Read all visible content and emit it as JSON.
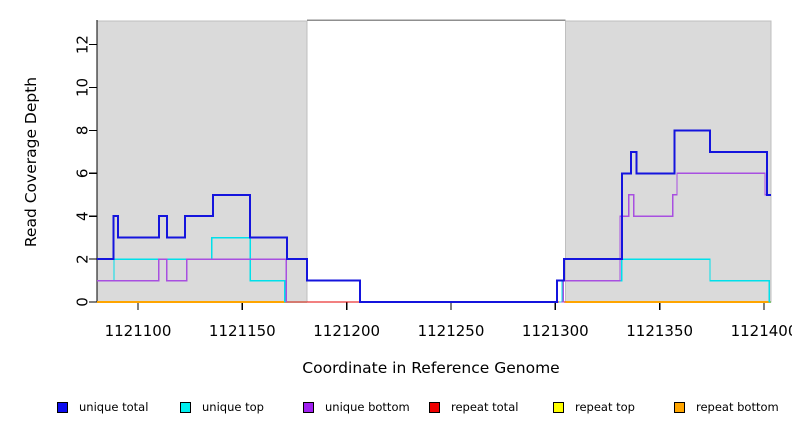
{
  "chart_data": {
    "type": "line",
    "step": true,
    "title": "",
    "axes": {
      "x": {
        "label": "Coordinate in Reference Genome",
        "tick_values": [
          1121100,
          1121150,
          1121200,
          1121250,
          1121300,
          1121350,
          1121400
        ],
        "tick_labels": [
          "1121100",
          "1121150",
          "1121200",
          "1121250",
          "1121300",
          "1121350",
          "1121400"
        ],
        "min": 1121080.4,
        "max": 1121403.3
      },
      "y": {
        "label": "Read Coverage Depth",
        "tick_values": [
          0,
          2,
          4,
          6,
          8,
          10,
          12
        ],
        "tick_labels": [
          "0",
          "2",
          "4",
          "6",
          "8",
          "10",
          "12"
        ],
        "min": 0,
        "max": 13.1
      }
    },
    "shaded_regions": [
      {
        "from": 1121080.4,
        "to": 1121181,
        "fill": "#dadada",
        "edge": "#bfbfbf"
      },
      {
        "from": 1121304.8,
        "to": 1121403.3,
        "fill": "#dadada",
        "edge": "#bfbfbf"
      }
    ],
    "gap_top_line_color": "#8f8f8f",
    "series": [
      {
        "name": "repeat total",
        "color": "#e60000",
        "width": 1.4,
        "runs": [
          {
            "steps": [
              [
                1121080.4,
                0
              ]
            ],
            "end": 1121403.3
          }
        ]
      },
      {
        "name": "repeat top",
        "color": "#ffff00",
        "width": 1.4,
        "runs": [
          {
            "steps": [
              [
                1121080.4,
                0
              ]
            ],
            "end": 1121181
          },
          {
            "steps": [
              [
                1121304.8,
                0
              ]
            ],
            "end": 1121403.3
          }
        ]
      },
      {
        "name": "repeat bottom",
        "color": "#ffa500",
        "width": 1.6,
        "runs": [
          {
            "steps": [
              [
                1121080.4,
                0
              ]
            ],
            "end": 1121181
          },
          {
            "steps": [
              [
                1121304.8,
                0
              ]
            ],
            "end": 1121403.3
          }
        ]
      },
      {
        "name": "unique top",
        "color": "#00e0ea",
        "width": 1.4,
        "runs": [
          {
            "steps": [
              [
                1121080.4,
                1
              ],
              [
                1121088.5,
                2
              ],
              [
                1121135.3,
                3
              ],
              [
                1121153.7,
                1
              ],
              [
                1121170.4,
                0
              ]
            ],
            "end": 1121181
          },
          {
            "steps": [
              [
                1121301.8,
                0
              ],
              [
                1121303.2,
                1
              ],
              [
                1121331.9,
                2
              ],
              [
                1121374.1,
                1
              ],
              [
                1121402.6,
                0
              ]
            ],
            "end": 1121403.3
          }
        ]
      },
      {
        "name": "unique bottom",
        "color": "#a84fe0",
        "width": 1.4,
        "runs": [
          {
            "steps": [
              [
                1121080.4,
                1
              ],
              [
                1121110,
                2
              ],
              [
                1121113.8,
                1
              ],
              [
                1121123.3,
                2
              ],
              [
                1121171,
                0
              ]
            ],
            "end": 1121181
          },
          {
            "steps": [
              [
                1121302.8,
                0
              ],
              [
                1121303.8,
                1
              ],
              [
                1121331,
                4
              ],
              [
                1121335.2,
                5
              ],
              [
                1121337.6,
                4
              ],
              [
                1121356.2,
                5
              ],
              [
                1121358.3,
                6
              ],
              [
                1121400.5,
                5
              ]
            ],
            "end": 1121403.3
          }
        ]
      },
      {
        "name": "unique total",
        "color": "#1414dd",
        "width": 2,
        "runs": [
          {
            "steps": [
              [
                1121080.4,
                2
              ],
              [
                1121088.2,
                4
              ],
              [
                1121090.3,
                3
              ],
              [
                1121110,
                4
              ],
              [
                1121113.8,
                3
              ],
              [
                1121122.5,
                4
              ],
              [
                1121135.9,
                5
              ],
              [
                1121153.7,
                3
              ],
              [
                1121171.4,
                2
              ],
              [
                1121181,
                1
              ],
              [
                1121206.4,
                0
              ],
              [
                1121300.7,
                1
              ],
              [
                1121304.1,
                2
              ],
              [
                1121331.9,
                6
              ],
              [
                1121336.2,
                7
              ],
              [
                1121338.9,
                6
              ],
              [
                1121357,
                8
              ],
              [
                1121374.1,
                7
              ],
              [
                1121401.4,
                5
              ]
            ],
            "end": 1121403.3
          }
        ]
      }
    ],
    "legend": [
      {
        "label": "unique total",
        "color": "#0b0bee"
      },
      {
        "label": "unique top",
        "color": "#00eeee"
      },
      {
        "label": "unique bottom",
        "color": "#a020f0"
      },
      {
        "label": "repeat total",
        "color": "#ee0000"
      },
      {
        "label": "repeat top",
        "color": "#ffff00"
      },
      {
        "label": "repeat bottom",
        "color": "#ffa500"
      }
    ]
  }
}
